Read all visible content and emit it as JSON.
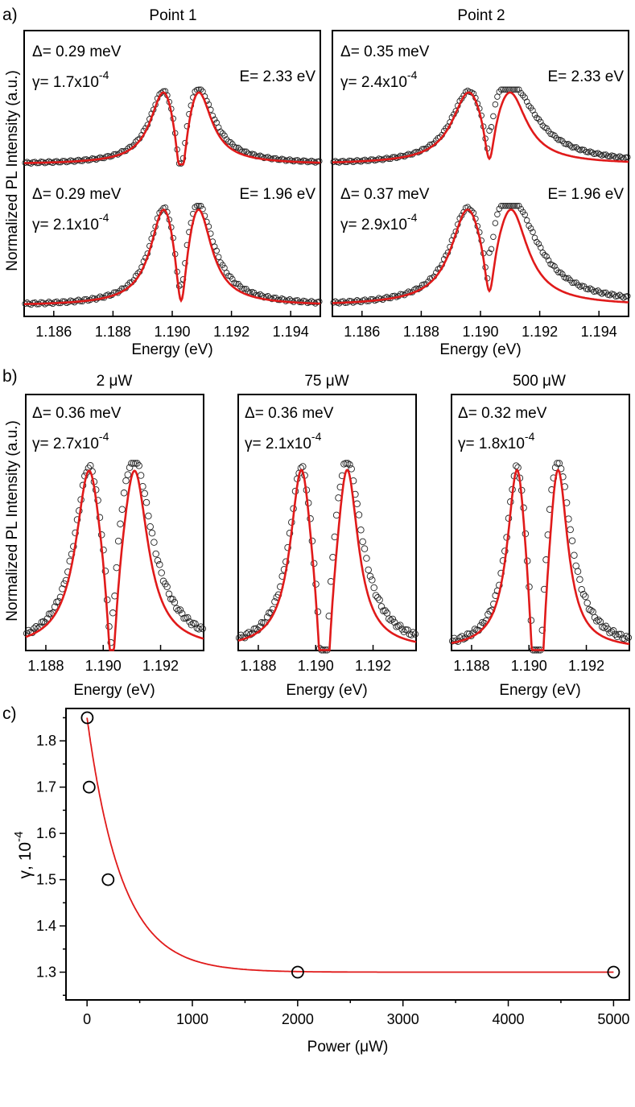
{
  "chart_data": [
    {
      "type": "line",
      "panel_label": "a)",
      "ylabel": "Normalized PL Intensity (a.u.)",
      "xlabel": "Energy (eV)",
      "xlim": [
        1.185,
        1.195
      ],
      "xticks": [
        "1.186",
        "1.188",
        "1.190",
        "1.192",
        "1.194"
      ],
      "columns": [
        {
          "title": "Point 1",
          "spectra": [
            {
              "delta": "Δ= 0.29 meV",
              "gamma_base": "γ= 1.7x10",
              "gamma_exp": "-4",
              "energy": "E= 2.33 eV",
              "center_eV": 1.1903,
              "splitting_meV": 0.29,
              "dip_depth": 0.78,
              "baseline": 0.06
            },
            {
              "delta": "Δ= 0.29 meV",
              "gamma_base": "γ= 2.1x10",
              "gamma_exp": "-4",
              "energy": "E= 1.96 eV",
              "center_eV": 1.1903,
              "splitting_meV": 0.29,
              "dip_depth": 0.62,
              "baseline": 0.04
            }
          ]
        },
        {
          "title": "Point 2",
          "spectra": [
            {
              "delta": "Δ= 0.35 meV",
              "gamma_base": "γ= 2.4x10",
              "gamma_exp": "-4",
              "energy": "E= 2.33 eV",
              "center_eV": 1.1903,
              "splitting_meV": 0.35,
              "dip_depth": 0.62,
              "baseline": 0.06
            },
            {
              "delta": "Δ= 0.37 meV",
              "gamma_base": "γ= 2.9x10",
              "gamma_exp": "-4",
              "energy": "E= 1.96 eV",
              "center_eV": 1.1903,
              "splitting_meV": 0.37,
              "dip_depth": 0.52,
              "baseline": 0.04
            }
          ]
        }
      ]
    },
    {
      "type": "line",
      "panel_label": "b)",
      "ylabel": "Normalized PL Intensity (a.u.)",
      "xlabel": "Energy (eV)",
      "xlim": [
        1.1873,
        1.1935
      ],
      "xticks": [
        "1.188",
        "1.190",
        "1.192"
      ],
      "panels": [
        {
          "title": "2 μW",
          "delta": "Δ= 0.36 meV",
          "gamma_base": "γ= 2.7x10",
          "gamma_exp": "-4",
          "center_eV": 1.1903,
          "splitting_meV": 0.36,
          "dip_depth": 0.55
        },
        {
          "title": "75 μW",
          "delta": "Δ= 0.36 meV",
          "gamma_base": "γ= 2.1x10",
          "gamma_exp": "-4",
          "center_eV": 1.1903,
          "splitting_meV": 0.36,
          "dip_depth": 0.7
        },
        {
          "title": "500 μW",
          "delta": "Δ= 0.32 meV",
          "gamma_base": "γ= 1.8x10",
          "gamma_exp": "-4",
          "center_eV": 1.1903,
          "splitting_meV": 0.32,
          "dip_depth": 0.8
        }
      ]
    },
    {
      "type": "scatter",
      "panel_label": "c)",
      "xlabel": "Power  (μW)",
      "ylabel_base": "γ, 10",
      "ylabel_exp": "-4",
      "xlim": [
        -200,
        5150
      ],
      "ylim": [
        1.24,
        1.87
      ],
      "xticks": [
        "0",
        "1000",
        "2000",
        "3000",
        "4000",
        "5000"
      ],
      "yticks": [
        "1.3",
        "1.4",
        "1.5",
        "1.6",
        "1.7",
        "1.8"
      ],
      "points": [
        {
          "x": 2,
          "y": 1.85
        },
        {
          "x": 20,
          "y": 1.7
        },
        {
          "x": 200,
          "y": 1.5
        },
        {
          "x": 2000,
          "y": 1.3
        },
        {
          "x": 5000,
          "y": 1.3
        }
      ],
      "fit": {
        "model": "exponential decay",
        "y0": 1.3,
        "amplitude": 0.55,
        "decay_uW": 330
      }
    }
  ]
}
